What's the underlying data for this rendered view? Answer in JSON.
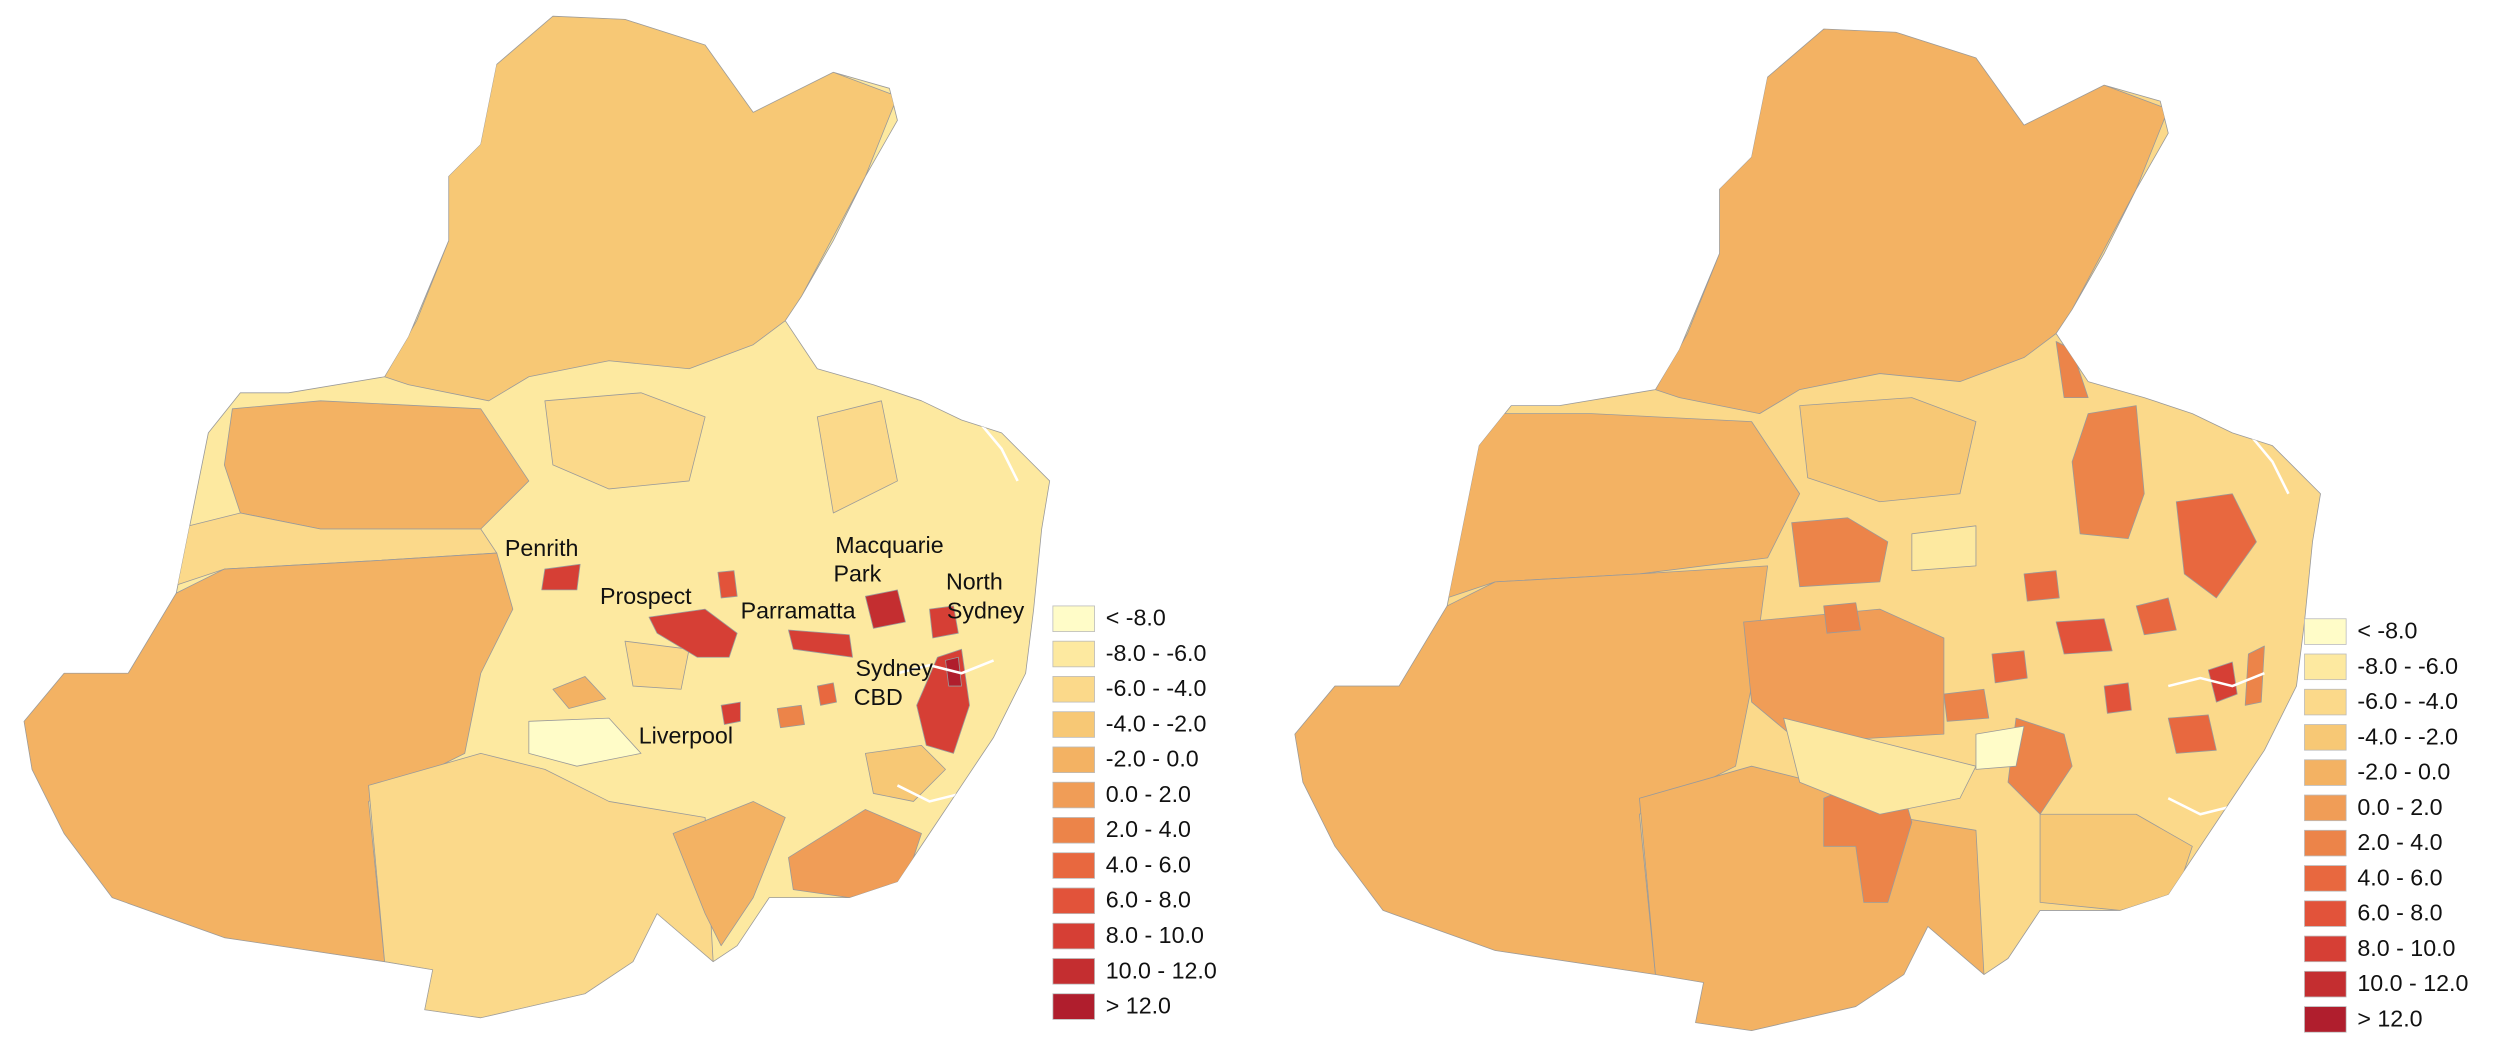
{
  "maps": [
    {
      "legend": [
        {
          "label": "< -8.0",
          "color": "#fffcc8"
        },
        {
          "label": "-8.0 - -6.0",
          "color": "#fde9a0"
        },
        {
          "label": "-6.0 - -4.0",
          "color": "#fbd98a"
        },
        {
          "label": "-4.0 - -2.0",
          "color": "#f7c875"
        },
        {
          "label": "-2.0 - 0.0",
          "color": "#f3b263"
        },
        {
          "label": "0.0 - 2.0",
          "color": "#f09d57"
        },
        {
          "label": "2.0 - 4.0",
          "color": "#ec8449"
        },
        {
          "label": "4.0 - 6.0",
          "color": "#e8683f"
        },
        {
          "label": "6.0 - 8.0",
          "color": "#e2533a"
        },
        {
          "label": "8.0 - 10.0",
          "color": "#d63f35"
        },
        {
          "label": "10.0 - 12.0",
          "color": "#c42e30"
        },
        {
          "label": "> 12.0",
          "color": "#b01e2d"
        }
      ],
      "place_labels": [
        {
          "lines": [
            "Penrith"
          ]
        },
        {
          "lines": [
            "Prospect"
          ]
        },
        {
          "lines": [
            "Parramatta"
          ]
        },
        {
          "lines": [
            "Macquarie",
            "Park"
          ]
        },
        {
          "lines": [
            "North",
            "Sydney"
          ]
        },
        {
          "lines": [
            "Sydney",
            "CBD"
          ]
        },
        {
          "lines": [
            "Liverpool"
          ]
        }
      ]
    },
    {
      "legend": [
        {
          "label": "< -8.0",
          "color": "#fffcc8"
        },
        {
          "label": "-8.0 - -6.0",
          "color": "#fde9a0"
        },
        {
          "label": "-6.0 - -4.0",
          "color": "#fbd98a"
        },
        {
          "label": "-4.0 - -2.0",
          "color": "#f7c875"
        },
        {
          "label": "-2.0 - 0.0",
          "color": "#f3b263"
        },
        {
          "label": "0.0 - 2.0",
          "color": "#f09d57"
        },
        {
          "label": "2.0 - 4.0",
          "color": "#ec8449"
        },
        {
          "label": "4.0 - 6.0",
          "color": "#e8683f"
        },
        {
          "label": "6.0 - 8.0",
          "color": "#e2533a"
        },
        {
          "label": "8.0 - 10.0",
          "color": "#d63f35"
        },
        {
          "label": "10.0 - 12.0",
          "color": "#c42e30"
        },
        {
          "label": "> 12.0",
          "color": "#b01e2d"
        }
      ]
    }
  ]
}
